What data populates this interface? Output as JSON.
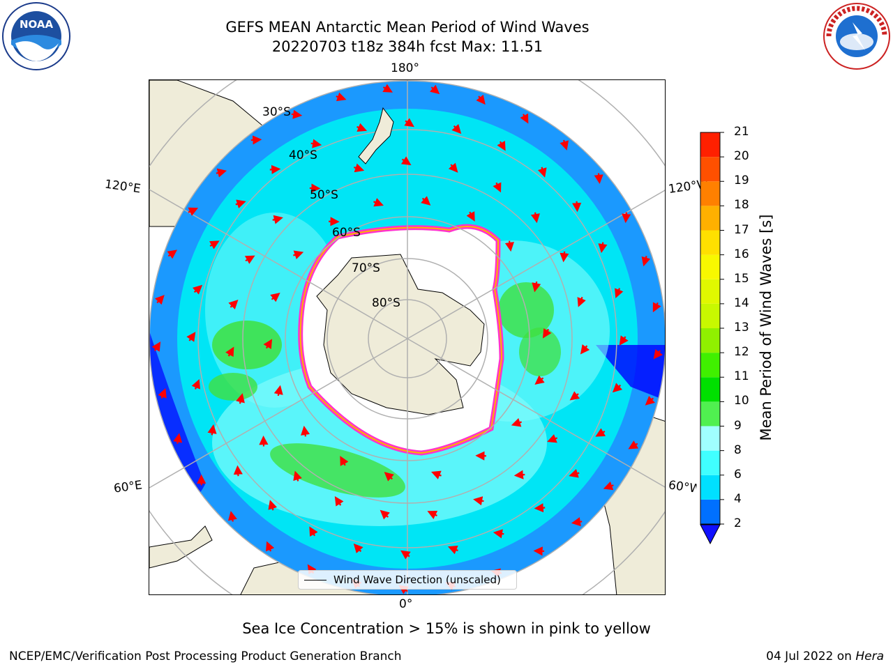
{
  "title": {
    "line1": "GEFS MEAN Antarctic Mean Period of Wind Waves",
    "line2": "20220703 t18z 384h fcst   Max: 11.51"
  },
  "logos": {
    "left": "NOAA",
    "right": "NATIONAL WEATHER SERVICE"
  },
  "map": {
    "projection": "south-polar-stereographic",
    "lon_labels": {
      "top": "180°",
      "bottom": "0°",
      "upper_left": "120°E",
      "upper_right": "120°W",
      "lower_left": "60°E",
      "lower_right": "60°W"
    },
    "lat_labels": [
      "30°S",
      "40°S",
      "50°S",
      "60°S",
      "70°S",
      "80°S"
    ],
    "legend_label": "Wind Wave Direction (unscaled)",
    "colors": {
      "land": "#efecd9",
      "ocean_main": "#00e5f5",
      "ocean_light": "#80fcfc",
      "ocean_dark": "#1e90ff",
      "ocean_deep": "#0000ff",
      "green": "#40e040",
      "arrow": "#ff0000",
      "ice_edge": "#ff33cc"
    }
  },
  "colorbar": {
    "label": "Mean Period of Wind Waves [s]",
    "ticks": [
      "2",
      "4",
      "6",
      "8",
      "9",
      "10",
      "11",
      "12",
      "13",
      "14",
      "15",
      "16",
      "17",
      "18",
      "19",
      "20",
      "21"
    ],
    "colors": [
      "#0070ff",
      "#00e0ff",
      "#40ffff",
      "#a0ffff",
      "#50f050",
      "#00e000",
      "#40f000",
      "#90f000",
      "#c8f800",
      "#e0f800",
      "#f8f800",
      "#ffe000",
      "#ffb000",
      "#ff8000",
      "#ff5000",
      "#ff2000"
    ],
    "extend_color": "#1010ff"
  },
  "caption": "Sea Ice Concentration > 15% is shown in pink to yellow",
  "footer": {
    "left": "NCEP/EMC/Verification Post Processing Product Generation Branch",
    "right_date": "04 Jul 2022 on ",
    "right_host": "Hera"
  }
}
